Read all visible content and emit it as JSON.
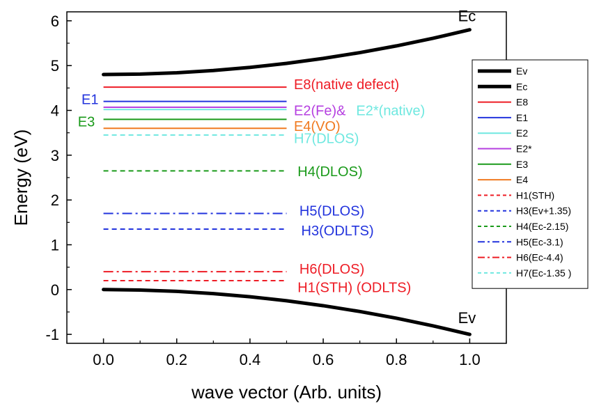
{
  "chart_data": {
    "type": "line",
    "xlabel": "wave vector (Arb. units)",
    "ylabel": "Energy (eV)",
    "xlim": [
      -0.1,
      1.1
    ],
    "ylim": [
      -1.2,
      6.2
    ],
    "x_ticks": [
      "0.0",
      "0.2",
      "0.4",
      "0.6",
      "0.8",
      "1.0"
    ],
    "y_ticks": [
      "-1",
      "0",
      "1",
      "2",
      "3",
      "4",
      "5",
      "6"
    ],
    "grid": false,
    "legend_position": "right",
    "bands": [
      {
        "name": "Ev",
        "color": "#000000",
        "x": [
          0,
          0.1,
          0.2,
          0.3,
          0.4,
          0.5,
          0.6,
          0.7,
          0.8,
          0.9,
          1.0
        ],
        "y": [
          0,
          -0.01,
          -0.04,
          -0.09,
          -0.16,
          -0.25,
          -0.36,
          -0.49,
          -0.64,
          -0.81,
          -1.0
        ],
        "end_label": "Ev"
      },
      {
        "name": "Ec",
        "color": "#000000",
        "x": [
          0,
          0.1,
          0.2,
          0.3,
          0.4,
          0.5,
          0.6,
          0.7,
          0.8,
          0.9,
          1.0
        ],
        "y": [
          4.8,
          4.81,
          4.84,
          4.89,
          4.96,
          5.05,
          5.16,
          5.29,
          5.44,
          5.61,
          5.8
        ],
        "end_label": "Ec"
      }
    ],
    "levels": [
      {
        "name": "E8",
        "energy": 4.52,
        "x_range": [
          0,
          0.5
        ],
        "style": "solid",
        "color": "#ee1c25"
      },
      {
        "name": "E1",
        "energy": 4.2,
        "x_range": [
          0,
          0.5
        ],
        "style": "solid",
        "color": "#2233dd"
      },
      {
        "name": "E2",
        "energy": 4.02,
        "x_range": [
          0,
          0.5
        ],
        "style": "solid",
        "color": "#6fe8e0"
      },
      {
        "name": "E2*",
        "energy": 4.07,
        "x_range": [
          0,
          0.5
        ],
        "style": "solid",
        "color": "#b53fe0"
      },
      {
        "name": "E3",
        "energy": 3.8,
        "x_range": [
          0,
          0.5
        ],
        "style": "solid",
        "color": "#1a9a1a"
      },
      {
        "name": "E4",
        "energy": 3.6,
        "x_range": [
          0,
          0.5
        ],
        "style": "solid",
        "color": "#f07a20"
      },
      {
        "name": "H1(STH)",
        "energy": 0.2,
        "x_range": [
          0,
          0.5
        ],
        "style": "dash",
        "color": "#ee1c25"
      },
      {
        "name": "H3(Ev+1.35)",
        "energy": 1.35,
        "x_range": [
          0,
          0.5
        ],
        "style": "dash",
        "color": "#2233dd"
      },
      {
        "name": "H4(Ec-2.15)",
        "energy": 2.65,
        "x_range": [
          0,
          0.5
        ],
        "style": "dash",
        "color": "#1a9a1a"
      },
      {
        "name": "H5(Ec-3.1)",
        "energy": 1.7,
        "x_range": [
          0,
          0.5
        ],
        "style": "dashdot",
        "color": "#2233dd"
      },
      {
        "name": "H6(Ec-4.4)",
        "energy": 0.4,
        "x_range": [
          0,
          0.5
        ],
        "style": "dashdot",
        "color": "#ee1c25"
      },
      {
        "name": "H7(Ec-1.35 )",
        "energy": 3.45,
        "x_range": [
          0,
          0.5
        ],
        "style": "dash",
        "color": "#6fe8e0"
      }
    ],
    "annotations": [
      {
        "text": "E8(native defect)",
        "x": 0.52,
        "y": 4.58,
        "color": "#ee1c25"
      },
      {
        "text": "E1",
        "x": -0.06,
        "y": 4.25,
        "color": "#2233dd"
      },
      {
        "text": "E2(Fe)&",
        "x": 0.52,
        "y": 4.0,
        "color": "#b53fe0"
      },
      {
        "text": "E2*(native)",
        "x": 0.69,
        "y": 4.0,
        "color": "#6fe8e0"
      },
      {
        "text": "E3",
        "x": -0.07,
        "y": 3.75,
        "color": "#1a9a1a"
      },
      {
        "text": "E4(VO)",
        "x": 0.52,
        "y": 3.65,
        "color": "#f07a20"
      },
      {
        "text": "H7(DLOS)",
        "x": 0.52,
        "y": 3.38,
        "color": "#6fe8e0"
      },
      {
        "text": "H4(DLOS)",
        "x": 0.53,
        "y": 2.64,
        "color": "#1a9a1a"
      },
      {
        "text": "H5(DLOS)",
        "x": 0.535,
        "y": 1.76,
        "color": "#2233dd"
      },
      {
        "text": "H3(ODLTS)",
        "x": 0.54,
        "y": 1.32,
        "color": "#2233dd"
      },
      {
        "text": "H6(DLOS)",
        "x": 0.535,
        "y": 0.46,
        "color": "#ee1c25"
      },
      {
        "text": "H1(STH) (ODLTS)",
        "x": 0.53,
        "y": 0.05,
        "color": "#ee1c25"
      }
    ],
    "legend": [
      {
        "label": "Ev",
        "color": "#000000",
        "style": "thick"
      },
      {
        "label": "Ec",
        "color": "#000000",
        "style": "thick"
      },
      {
        "label": "E8",
        "color": "#ee1c25",
        "style": "solid"
      },
      {
        "label": "E1",
        "color": "#2233dd",
        "style": "solid"
      },
      {
        "label": "E2",
        "color": "#6fe8e0",
        "style": "solid"
      },
      {
        "label": "E2*",
        "color": "#b53fe0",
        "style": "solid"
      },
      {
        "label": "E3",
        "color": "#1a9a1a",
        "style": "solid"
      },
      {
        "label": "E4",
        "color": "#f07a20",
        "style": "solid"
      },
      {
        "label": "H1(STH)",
        "color": "#ee1c25",
        "style": "dash"
      },
      {
        "label": "H3(Ev+1.35)",
        "color": "#2233dd",
        "style": "dash"
      },
      {
        "label": "H4(Ec-2.15)",
        "color": "#1a9a1a",
        "style": "dash"
      },
      {
        "label": "H5(Ec-3.1)",
        "color": "#2233dd",
        "style": "dashdot"
      },
      {
        "label": "H6(Ec-4.4)",
        "color": "#ee1c25",
        "style": "dashdot"
      },
      {
        "label": "H7(Ec-1.35 )",
        "color": "#6fe8e0",
        "style": "dash"
      }
    ]
  }
}
